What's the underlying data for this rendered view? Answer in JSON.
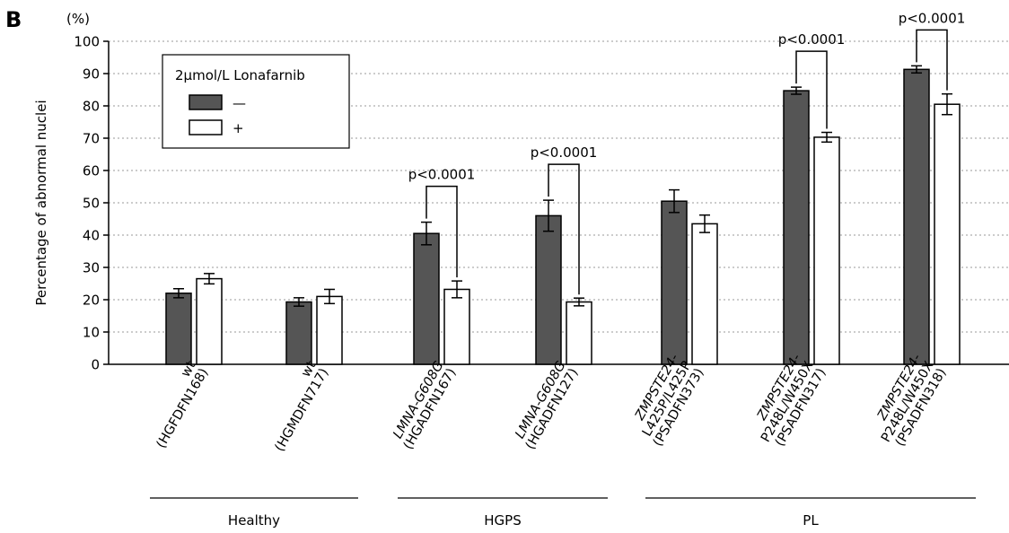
{
  "panel_label": "B",
  "chart_data": {
    "type": "bar",
    "ylabel": "Percentage of abnormal nuclei",
    "yunit": "(%)",
    "ylim": [
      0,
      100
    ],
    "yticks": [
      0,
      10,
      20,
      30,
      40,
      50,
      60,
      70,
      80,
      90,
      100
    ],
    "grid": "horizontal dotted",
    "legend": {
      "title": "2µmol/L Lonafarnib",
      "placement": "top-left",
      "entries": [
        {
          "label": "—",
          "color": "#555555"
        },
        {
          "label": "+",
          "color": "#ffffff"
        }
      ]
    },
    "categories": [
      {
        "line1": "wt",
        "line2": "(HGFDFN168)",
        "italic1": false
      },
      {
        "line1": "wt",
        "line2": "(HGMDFN717)",
        "italic1": false
      },
      {
        "line1": "LMNA-G608G",
        "line2": "(HGADFN167)",
        "italic1": true
      },
      {
        "line1": "LMNA-G608G",
        "line2": "(HGADFN127)",
        "italic1": true
      },
      {
        "line1": "ZMPSTE24-",
        "line2": "L425P/L425P",
        "line3": "(PSADFN373)",
        "italic1": true
      },
      {
        "line1": "ZMPSTE24-",
        "line2": "P248L/W450X",
        "line3": "(PSADFN317)",
        "italic1": true
      },
      {
        "line1": "ZMPSTE24-",
        "line2": "P248L/W450X",
        "line3": "(PSADFN318)",
        "italic1": true
      }
    ],
    "series": [
      {
        "legend_index": 0,
        "color": "#555555",
        "values": [
          22,
          19.3,
          40.5,
          46,
          50.5,
          84.7,
          91.3
        ],
        "errors": [
          1.4,
          1.3,
          3.5,
          4.8,
          3.5,
          1.1,
          1.1
        ]
      },
      {
        "legend_index": 1,
        "color": "#ffffff",
        "values": [
          26.5,
          21,
          23.2,
          19.3,
          43.5,
          70.3,
          80.5
        ],
        "errors": [
          1.6,
          2.2,
          2.6,
          1.2,
          2.7,
          1.5,
          3.2
        ]
      }
    ],
    "groups": [
      {
        "label": "Healthy",
        "from": 0,
        "to": 1
      },
      {
        "label": "HGPS",
        "from": 2,
        "to": 3
      },
      {
        "label": "PL",
        "from": 4,
        "to": 6
      }
    ],
    "annotations": [
      {
        "category": 2,
        "text": "p<0.0001"
      },
      {
        "category": 3,
        "text": "p<0.0001"
      },
      {
        "category": 5,
        "text": "p<0.0001"
      },
      {
        "category": 6,
        "text": "p<0.0001"
      }
    ]
  }
}
